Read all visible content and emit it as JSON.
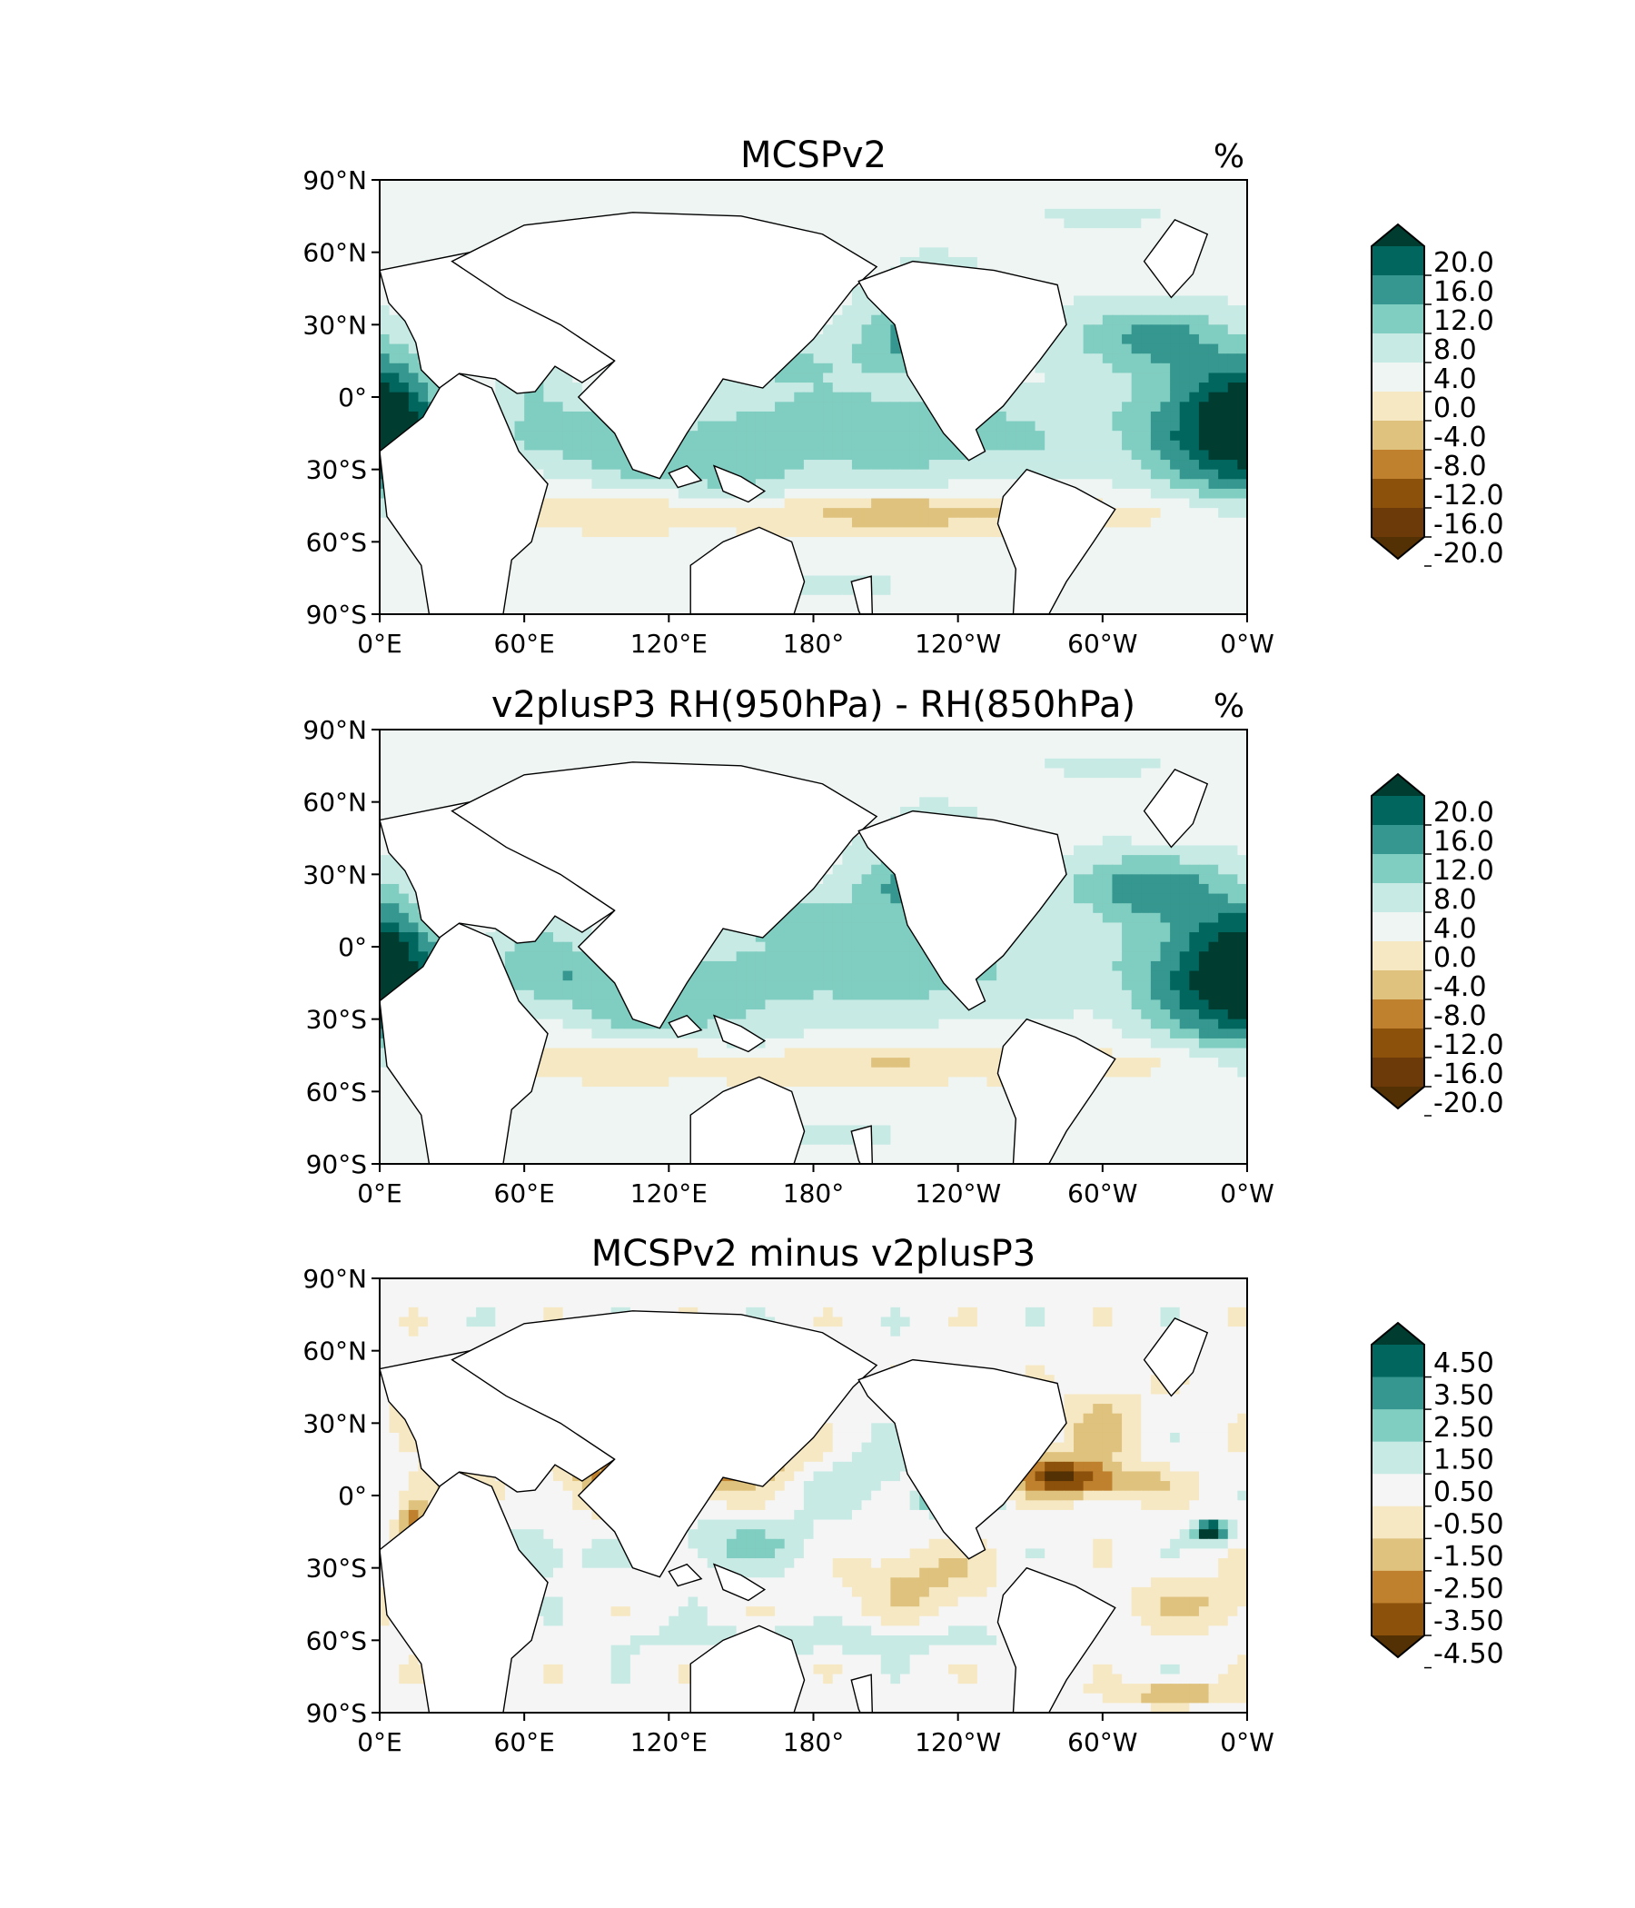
{
  "chart_data": [
    {
      "type": "heatmap",
      "title": "MCSPv2",
      "units": "%",
      "x_ticks": [
        "0°E",
        "60°E",
        "120°E",
        "180°",
        "120°W",
        "60°W",
        "0°W"
      ],
      "y_ticks": [
        "90°N",
        "60°N",
        "30°N",
        "0°",
        "30°S",
        "60°S",
        "90°S"
      ],
      "xlim": [
        0,
        360
      ],
      "ylim": [
        -90,
        90
      ],
      "colorbar": {
        "levels": [
          20.0,
          16.0,
          12.0,
          8.0,
          4.0,
          0.0,
          -4.0,
          -8.0,
          -12.0,
          -16.0,
          -20.0
        ],
        "labels": [
          "20.0",
          "16.0",
          "12.0",
          "8.0",
          "4.0",
          "0.0",
          "-4.0",
          "-8.0",
          "-12.0",
          "-16.0",
          "-20.0"
        ],
        "colors": [
          "#003c30",
          "#01665e",
          "#35978f",
          "#80cdc1",
          "#c7eae5",
          "#eef5f3",
          "#f6e8c3",
          "#dfc27d",
          "#bf812d",
          "#8c510a",
          "#6b3a08",
          "#543005"
        ],
        "extend": "both"
      },
      "field": {
        "bg": 2,
        "features": [
          {
            "lon": 205,
            "lat": -15,
            "a": 9.5,
            "sx": 70,
            "sy": 14
          },
          {
            "lon": 345,
            "lat": -12,
            "a": 14,
            "sx": 22,
            "sy": 22
          },
          {
            "lon": 5,
            "lat": -12,
            "a": 14,
            "sx": 15,
            "sy": 20
          },
          {
            "lon": 222,
            "lat": 27,
            "a": 11,
            "sx": 18,
            "sy": 12
          },
          {
            "lon": 315,
            "lat": 25,
            "a": 10,
            "sx": 24,
            "sy": 10
          },
          {
            "lon": 75,
            "lat": -15,
            "a": 7,
            "sx": 22,
            "sy": 10
          },
          {
            "lon": 165,
            "lat": 15,
            "a": 6,
            "sx": 25,
            "sy": 8
          },
          {
            "lon": 62,
            "lat": 12,
            "a": 7,
            "sx": 8,
            "sy": 10
          },
          {
            "lon": 120,
            "lat": -30,
            "a": 6,
            "sx": 20,
            "sy": 8
          },
          {
            "lon": 155,
            "lat": -40,
            "a": 4,
            "sx": 15,
            "sy": 8
          },
          {
            "lon": 230,
            "lat": 55,
            "a": 3,
            "sx": 15,
            "sy": 6
          },
          {
            "lon": 180,
            "lat": 50,
            "a": 2,
            "sx": 20,
            "sy": 6
          },
          {
            "lon": 300,
            "lat": 75,
            "a": 3,
            "sx": 20,
            "sy": 6
          },
          {
            "lon": 180,
            "lat": -78,
            "a": 5,
            "sx": 22,
            "sy": 4
          },
          {
            "lon": 180,
            "lat": -48,
            "a": -6,
            "sx": 160,
            "sy": 6
          },
          {
            "lon": 100,
            "lat": 52,
            "a": -3,
            "sx": 60,
            "sy": 10
          },
          {
            "lon": 220,
            "lat": -48,
            "a": -4,
            "sx": 25,
            "sy": 4
          }
        ]
      }
    },
    {
      "type": "heatmap",
      "title": "v2plusP3 RH(950hPa) - RH(850hPa)",
      "units": "%",
      "x_ticks": [
        "0°E",
        "60°E",
        "120°E",
        "180°",
        "120°W",
        "60°W",
        "0°W"
      ],
      "y_ticks": [
        "90°N",
        "60°N",
        "30°N",
        "0°",
        "30°S",
        "60°S",
        "90°S"
      ],
      "xlim": [
        0,
        360
      ],
      "ylim": [
        -90,
        90
      ],
      "colorbar": {
        "levels": [
          20.0,
          16.0,
          12.0,
          8.0,
          4.0,
          0.0,
          -4.0,
          -8.0,
          -12.0,
          -16.0,
          -20.0
        ],
        "labels": [
          "20.0",
          "16.0",
          "12.0",
          "8.0",
          "4.0",
          "0.0",
          "-4.0",
          "-8.0",
          "-12.0",
          "-16.0",
          "-20.0"
        ],
        "colors": [
          "#003c30",
          "#01665e",
          "#35978f",
          "#80cdc1",
          "#c7eae5",
          "#eef5f3",
          "#f6e8c3",
          "#dfc27d",
          "#bf812d",
          "#8c510a",
          "#6b3a08",
          "#543005"
        ],
        "extend": "both"
      },
      "field": {
        "bg": 2,
        "features": [
          {
            "lon": 200,
            "lat": -10,
            "a": 8.5,
            "sx": 70,
            "sy": 14
          },
          {
            "lon": 345,
            "lat": -12,
            "a": 15,
            "sx": 22,
            "sy": 22
          },
          {
            "lon": 5,
            "lat": -12,
            "a": 14,
            "sx": 15,
            "sy": 20
          },
          {
            "lon": 222,
            "lat": 27,
            "a": 11,
            "sx": 18,
            "sy": 12
          },
          {
            "lon": 315,
            "lat": 25,
            "a": 11,
            "sx": 24,
            "sy": 10
          },
          {
            "lon": 75,
            "lat": -12,
            "a": 8,
            "sx": 25,
            "sy": 10
          },
          {
            "lon": 165,
            "lat": 15,
            "a": 6,
            "sx": 25,
            "sy": 8
          },
          {
            "lon": 62,
            "lat": 12,
            "a": 7,
            "sx": 8,
            "sy": 10
          },
          {
            "lon": 115,
            "lat": -28,
            "a": 7,
            "sx": 20,
            "sy": 8
          },
          {
            "lon": 155,
            "lat": -40,
            "a": 4,
            "sx": 15,
            "sy": 8
          },
          {
            "lon": 230,
            "lat": 55,
            "a": 3,
            "sx": 15,
            "sy": 6
          },
          {
            "lon": 180,
            "lat": 50,
            "a": 2,
            "sx": 20,
            "sy": 6
          },
          {
            "lon": 300,
            "lat": 75,
            "a": 3,
            "sx": 20,
            "sy": 6
          },
          {
            "lon": 180,
            "lat": -78,
            "a": 5,
            "sx": 22,
            "sy": 4
          },
          {
            "lon": 180,
            "lat": -48,
            "a": -6,
            "sx": 160,
            "sy": 6
          },
          {
            "lon": 100,
            "lat": 52,
            "a": -3,
            "sx": 60,
            "sy": 10
          }
        ]
      }
    },
    {
      "type": "heatmap",
      "title": "MCSPv2 minus v2plusP3",
      "units": "",
      "x_ticks": [
        "0°E",
        "60°E",
        "120°E",
        "180°",
        "120°W",
        "60°W",
        "0°W"
      ],
      "y_ticks": [
        "90°N",
        "60°N",
        "30°N",
        "0°",
        "30°S",
        "60°S",
        "90°S"
      ],
      "xlim": [
        0,
        360
      ],
      "ylim": [
        -90,
        90
      ],
      "colorbar": {
        "levels": [
          4.5,
          3.5,
          2.5,
          1.5,
          0.5,
          -0.5,
          -1.5,
          -2.5,
          -3.5,
          -4.5
        ],
        "labels": [
          "4.50",
          "3.50",
          "2.50",
          "1.50",
          "0.50",
          "-0.50",
          "-1.50",
          "-2.50",
          "-3.50",
          "-4.50"
        ],
        "colors": [
          "#003c30",
          "#01665e",
          "#35978f",
          "#80cdc1",
          "#c7eae5",
          "#f5f5f5",
          "#f6e8c3",
          "#dfc27d",
          "#bf812d",
          "#8c510a",
          "#543005"
        ],
        "extend": "both"
      },
      "field": {
        "bg": 0,
        "features": [
          {
            "lon": 240,
            "lat": -2,
            "a": 6,
            "sx": 10,
            "sy": 3
          },
          {
            "lon": 345,
            "lat": -15,
            "a": 6,
            "sx": 5,
            "sy": 3
          },
          {
            "lon": 110,
            "lat": 8,
            "a": -4,
            "sx": 22,
            "sy": 9
          },
          {
            "lon": 280,
            "lat": 10,
            "a": -3.2,
            "sx": 14,
            "sy": 6
          },
          {
            "lon": 300,
            "lat": 5,
            "a": -2.5,
            "sx": 22,
            "sy": 5
          },
          {
            "lon": 15,
            "lat": -10,
            "a": -3,
            "sx": 5,
            "sy": 10
          },
          {
            "lon": 30,
            "lat": 5,
            "a": -2.2,
            "sx": 8,
            "sy": 6
          },
          {
            "lon": 155,
            "lat": 15,
            "a": -2.3,
            "sx": 25,
            "sy": 8
          },
          {
            "lon": 195,
            "lat": 10,
            "a": 1.5,
            "sx": 20,
            "sy": 10
          },
          {
            "lon": 150,
            "lat": -20,
            "a": 1.5,
            "sx": 25,
            "sy": 8
          },
          {
            "lon": 60,
            "lat": -25,
            "a": 1.5,
            "sx": 18,
            "sy": 8
          },
          {
            "lon": 225,
            "lat": -35,
            "a": -1.8,
            "sx": 20,
            "sy": 10
          },
          {
            "lon": 40,
            "lat": 40,
            "a": -1.7,
            "sx": 25,
            "sy": 8
          },
          {
            "lon": 340,
            "lat": -45,
            "a": -1.5,
            "sx": 22,
            "sy": 8
          },
          {
            "lon": 180,
            "lat": -60,
            "a": 1.2,
            "sx": 60,
            "sy": 4
          },
          {
            "lon": 330,
            "lat": -82,
            "a": -2.5,
            "sx": 18,
            "sy": 3
          },
          {
            "lon": 300,
            "lat": 30,
            "a": -1.8,
            "sx": 12,
            "sy": 10
          }
        ]
      }
    }
  ]
}
